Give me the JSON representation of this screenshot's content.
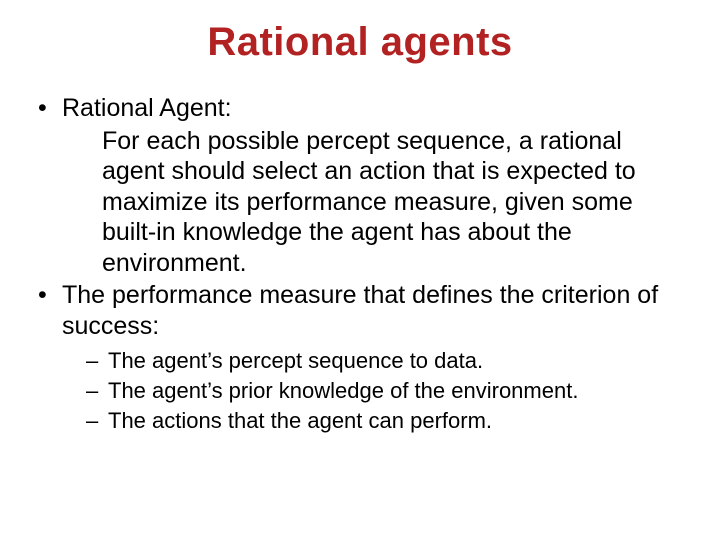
{
  "colors": {
    "title_color": "#b22222",
    "body_color": "#000000",
    "background": "#ffffff"
  },
  "typography": {
    "title_fontsize": 40,
    "level1_fontsize": 25,
    "level2_fontsize": 22,
    "font_family": "Arial"
  },
  "title": "Rational agents",
  "bullets": {
    "b1_lead": "Rational Agent:",
    "b1_body": "For each possible percept sequence, a rational agent should select an action that is expected to maximize its performance measure, given some built-in knowledge the agent has about the environment.",
    "b2": " The performance measure that defines the criterion of success:",
    "sub1": "The agent’s percept sequence to data.",
    "sub2": "The agent’s prior knowledge of the environment.",
    "sub3": "The actions that the agent can perform."
  }
}
